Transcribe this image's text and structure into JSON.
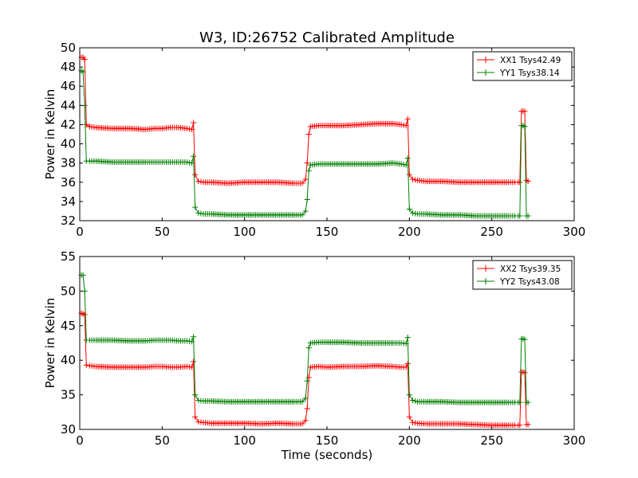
{
  "figure_title": "W3, ID:26752 Calibrated Amplitude",
  "chart_data": [
    {
      "type": "line",
      "title": "W3, ID:26752 Calibrated Amplitude",
      "xlabel": "",
      "ylabel": "Power in Kelvin",
      "xlim": [
        0,
        300
      ],
      "ylim": [
        32,
        50
      ],
      "xticks": [
        "0",
        "50",
        "100",
        "150",
        "200",
        "250",
        "300"
      ],
      "yticks": [
        "32",
        "34",
        "36",
        "38",
        "40",
        "42",
        "44",
        "46",
        "48",
        "50"
      ],
      "grid": false,
      "legend_position": "top-right",
      "marker": "plus",
      "series": [
        {
          "name": "XX1 Tsys42.49",
          "color": "#ff0000",
          "x": [
            1,
            2,
            3,
            4,
            6,
            10,
            20,
            30,
            40,
            45,
            50,
            55,
            60,
            65,
            68,
            69,
            70,
            72,
            75,
            80,
            90,
            100,
            110,
            120,
            130,
            135,
            137,
            138,
            139,
            140,
            145,
            150,
            160,
            170,
            180,
            190,
            195,
            198,
            199,
            200,
            202,
            205,
            210,
            220,
            230,
            240,
            250,
            260,
            264,
            266,
            267,
            268,
            269,
            270,
            271,
            272
          ],
          "y": [
            49.0,
            49.0,
            48.8,
            42.0,
            41.8,
            41.7,
            41.6,
            41.6,
            41.5,
            41.6,
            41.6,
            41.7,
            41.7,
            41.6,
            41.5,
            42.2,
            36.8,
            36.1,
            36.0,
            36.0,
            35.9,
            36.0,
            36.0,
            36.0,
            35.9,
            35.9,
            36.3,
            38.0,
            41.0,
            41.8,
            41.9,
            41.9,
            41.9,
            42.0,
            42.1,
            42.1,
            42.0,
            41.9,
            42.6,
            36.8,
            36.3,
            36.2,
            36.1,
            36.1,
            36.0,
            36.0,
            36.0,
            36.0,
            36.0,
            36.0,
            36.0,
            43.4,
            43.4,
            43.4,
            36.2,
            36.1
          ]
        },
        {
          "name": "YY1 Tsys38.14",
          "color": "#008000",
          "x": [
            1,
            2,
            3,
            4,
            6,
            10,
            20,
            30,
            40,
            45,
            50,
            55,
            60,
            65,
            68,
            69,
            70,
            72,
            75,
            80,
            90,
            100,
            110,
            120,
            130,
            135,
            137,
            138,
            139,
            140,
            145,
            150,
            160,
            170,
            180,
            190,
            195,
            198,
            199,
            200,
            202,
            205,
            210,
            220,
            230,
            240,
            250,
            260,
            264,
            266,
            267,
            268,
            269,
            270,
            271,
            272
          ],
          "y": [
            47.6,
            47.5,
            44.0,
            38.2,
            38.2,
            38.2,
            38.1,
            38.1,
            38.1,
            38.1,
            38.1,
            38.1,
            38.1,
            38.1,
            38.0,
            38.7,
            33.4,
            32.8,
            32.7,
            32.7,
            32.6,
            32.6,
            32.6,
            32.6,
            32.6,
            32.6,
            33.0,
            34.2,
            37.2,
            37.8,
            37.9,
            37.9,
            37.9,
            37.9,
            37.9,
            38.0,
            37.9,
            37.8,
            38.5,
            33.2,
            32.8,
            32.7,
            32.7,
            32.6,
            32.6,
            32.5,
            32.5,
            32.5,
            32.5,
            32.5,
            32.5,
            41.9,
            41.9,
            41.8,
            32.5,
            32.5
          ]
        }
      ]
    },
    {
      "type": "line",
      "title": "",
      "xlabel": "Time (seconds)",
      "ylabel": "Power in Kelvin",
      "xlim": [
        0,
        300
      ],
      "ylim": [
        30,
        55
      ],
      "xticks": [
        "0",
        "50",
        "100",
        "150",
        "200",
        "250",
        "300"
      ],
      "yticks": [
        "30",
        "35",
        "40",
        "45",
        "50",
        "55"
      ],
      "grid": false,
      "legend_position": "top-right",
      "marker": "plus",
      "series": [
        {
          "name": "XX2 Tsys39.35",
          "color": "#ff0000",
          "x": [
            1,
            2,
            3,
            4,
            6,
            10,
            20,
            30,
            40,
            45,
            50,
            55,
            60,
            65,
            68,
            69,
            70,
            72,
            75,
            80,
            90,
            100,
            110,
            120,
            130,
            135,
            137,
            138,
            139,
            140,
            145,
            150,
            160,
            170,
            180,
            190,
            195,
            198,
            199,
            200,
            202,
            205,
            210,
            220,
            230,
            240,
            250,
            260,
            264,
            266,
            267,
            268,
            269,
            270,
            271,
            272
          ],
          "y": [
            46.8,
            46.7,
            46.6,
            39.3,
            39.2,
            39.1,
            39.0,
            39.0,
            39.0,
            39.1,
            39.1,
            39.0,
            39.0,
            39.1,
            39.0,
            39.8,
            31.8,
            31.1,
            31.0,
            30.9,
            30.9,
            30.9,
            30.8,
            30.9,
            30.8,
            30.8,
            31.3,
            33.0,
            37.5,
            39.0,
            39.1,
            39.0,
            39.1,
            39.1,
            39.2,
            39.1,
            39.0,
            39.0,
            39.5,
            31.8,
            31.0,
            30.9,
            30.8,
            30.8,
            30.8,
            30.7,
            30.6,
            30.6,
            30.6,
            30.6,
            30.6,
            38.3,
            38.3,
            38.2,
            30.7,
            30.7
          ]
        },
        {
          "name": "YY2 Tsys43.08",
          "color": "#008000",
          "x": [
            1,
            2,
            3,
            4,
            6,
            10,
            20,
            30,
            40,
            45,
            50,
            55,
            60,
            65,
            68,
            69,
            70,
            72,
            75,
            80,
            90,
            100,
            110,
            120,
            130,
            135,
            137,
            138,
            139,
            140,
            145,
            150,
            160,
            170,
            180,
            190,
            195,
            198,
            199,
            200,
            202,
            205,
            210,
            220,
            230,
            240,
            250,
            260,
            264,
            266,
            267,
            268,
            269,
            270,
            271,
            272
          ],
          "y": [
            52.3,
            52.3,
            50.0,
            42.9,
            42.9,
            42.9,
            42.9,
            42.8,
            42.8,
            42.9,
            42.9,
            42.9,
            42.8,
            42.8,
            42.7,
            43.4,
            35.0,
            34.2,
            34.1,
            34.1,
            34.0,
            34.0,
            34.0,
            34.0,
            34.0,
            34.0,
            34.5,
            37.0,
            41.8,
            42.5,
            42.6,
            42.6,
            42.6,
            42.5,
            42.5,
            42.5,
            42.5,
            42.4,
            43.3,
            35.0,
            34.2,
            34.0,
            34.0,
            34.0,
            33.9,
            33.9,
            33.9,
            33.9,
            33.9,
            33.9,
            33.9,
            43.1,
            43.1,
            43.0,
            33.9,
            33.9
          ]
        }
      ]
    }
  ]
}
